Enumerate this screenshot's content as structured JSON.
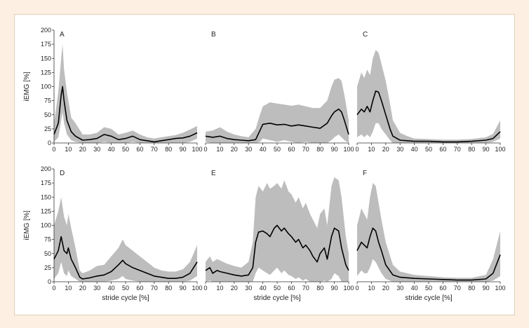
{
  "figure": {
    "ylabel": "iEMG [%]",
    "xlabel": "stride cycle [%]"
  },
  "colors": {
    "band": "#bdbdbd",
    "line": "#000000",
    "frame": "#e3cfb8",
    "background": "#fdf0e2"
  },
  "chart_data": [
    {
      "type": "area",
      "label": "A",
      "ylim": [
        0,
        200
      ],
      "xlim": [
        0,
        100
      ],
      "grid": false,
      "xticks": [
        "0",
        "10",
        "20",
        "30",
        "40",
        "50",
        "60",
        "70",
        "80",
        "90",
        "100"
      ],
      "yticks": [
        "0",
        "25",
        "50",
        "75",
        "100",
        "125",
        "150",
        "175",
        "200"
      ],
      "ylabel": "iEMG [%]",
      "xlabel": "",
      "x": [
        0,
        3,
        5,
        6,
        7,
        9,
        12,
        15,
        20,
        25,
        30,
        35,
        40,
        45,
        50,
        55,
        60,
        65,
        70,
        75,
        80,
        85,
        90,
        95,
        100
      ],
      "mean": [
        15,
        35,
        85,
        100,
        75,
        40,
        20,
        12,
        5,
        6,
        8,
        15,
        12,
        6,
        8,
        12,
        6,
        4,
        2,
        4,
        6,
        8,
        9,
        12,
        18
      ],
      "upper": [
        35,
        90,
        150,
        175,
        130,
        90,
        45,
        35,
        15,
        15,
        18,
        28,
        25,
        15,
        18,
        22,
        15,
        10,
        8,
        10,
        12,
        14,
        18,
        24,
        30
      ],
      "lower": [
        2,
        10,
        40,
        55,
        35,
        15,
        5,
        2,
        0,
        0,
        0,
        2,
        0,
        0,
        0,
        2,
        0,
        0,
        0,
        0,
        0,
        0,
        0,
        2,
        8
      ]
    },
    {
      "type": "area",
      "label": "B",
      "ylim": [
        0,
        200
      ],
      "xlim": [
        0,
        100
      ],
      "grid": false,
      "xticks": [
        "0",
        "10",
        "20",
        "30",
        "40",
        "50",
        "60",
        "70",
        "80",
        "90",
        "100"
      ],
      "yticks": [],
      "ylabel": "",
      "xlabel": "",
      "x": [
        0,
        5,
        10,
        15,
        20,
        25,
        30,
        35,
        38,
        40,
        45,
        50,
        55,
        60,
        65,
        70,
        75,
        80,
        85,
        88,
        90,
        93,
        95,
        97,
        100
      ],
      "mean": [
        12,
        10,
        12,
        8,
        6,
        5,
        4,
        6,
        22,
        33,
        35,
        32,
        33,
        30,
        32,
        30,
        28,
        26,
        35,
        48,
        55,
        60,
        55,
        40,
        15
      ],
      "upper": [
        20,
        22,
        28,
        20,
        15,
        12,
        10,
        25,
        50,
        65,
        72,
        70,
        68,
        66,
        68,
        65,
        62,
        62,
        75,
        100,
        112,
        115,
        110,
        85,
        40
      ],
      "lower": [
        2,
        0,
        0,
        0,
        0,
        0,
        0,
        0,
        2,
        8,
        5,
        2,
        5,
        2,
        0,
        2,
        0,
        0,
        0,
        5,
        10,
        15,
        10,
        5,
        0
      ]
    },
    {
      "type": "area",
      "label": "C",
      "ylim": [
        0,
        200
      ],
      "xlim": [
        0,
        100
      ],
      "grid": false,
      "xticks": [
        "0",
        "10",
        "20",
        "30",
        "40",
        "50",
        "60",
        "70",
        "80",
        "90",
        "100"
      ],
      "yticks": [],
      "ylabel": "",
      "xlabel": "",
      "x": [
        0,
        3,
        5,
        7,
        9,
        11,
        13,
        15,
        17,
        20,
        23,
        25,
        30,
        35,
        40,
        50,
        60,
        70,
        80,
        90,
        95,
        100
      ],
      "mean": [
        50,
        60,
        55,
        65,
        55,
        75,
        92,
        90,
        75,
        50,
        25,
        12,
        5,
        4,
        3,
        3,
        2,
        2,
        3,
        5,
        8,
        20
      ],
      "upper": [
        100,
        125,
        115,
        130,
        120,
        150,
        165,
        160,
        140,
        110,
        70,
        40,
        18,
        12,
        8,
        7,
        6,
        6,
        7,
        10,
        16,
        40
      ],
      "lower": [
        10,
        15,
        10,
        15,
        10,
        20,
        35,
        35,
        25,
        15,
        5,
        0,
        0,
        0,
        0,
        0,
        0,
        0,
        0,
        0,
        2,
        8
      ]
    },
    {
      "type": "area",
      "label": "D",
      "ylim": [
        0,
        200
      ],
      "xlim": [
        0,
        100
      ],
      "grid": false,
      "xticks": [
        "0",
        "10",
        "20",
        "30",
        "40",
        "50",
        "60",
        "70",
        "80",
        "90",
        "100"
      ],
      "yticks": [
        "0",
        "25",
        "50",
        "75",
        "100",
        "125",
        "150",
        "175",
        "200"
      ],
      "ylabel": "iEMG [%]",
      "xlabel": "stride cycle [%]",
      "x": [
        0,
        3,
        5,
        7,
        9,
        10,
        12,
        15,
        18,
        20,
        25,
        30,
        35,
        40,
        45,
        48,
        50,
        55,
        60,
        65,
        70,
        75,
        80,
        85,
        90,
        95,
        100
      ],
      "mean": [
        40,
        55,
        80,
        55,
        50,
        60,
        40,
        25,
        8,
        5,
        7,
        10,
        12,
        18,
        30,
        38,
        32,
        25,
        20,
        15,
        10,
        8,
        6,
        6,
        8,
        15,
        35
      ],
      "upper": [
        100,
        125,
        150,
        115,
        100,
        120,
        95,
        60,
        20,
        15,
        20,
        28,
        30,
        45,
        60,
        75,
        65,
        55,
        45,
        35,
        25,
        20,
        18,
        18,
        22,
        35,
        65
      ],
      "lower": [
        5,
        15,
        35,
        15,
        10,
        20,
        10,
        5,
        0,
        0,
        0,
        0,
        0,
        2,
        5,
        10,
        5,
        2,
        0,
        0,
        0,
        0,
        0,
        0,
        0,
        2,
        10
      ]
    },
    {
      "type": "area",
      "label": "E",
      "ylim": [
        0,
        200
      ],
      "xlim": [
        0,
        100
      ],
      "grid": false,
      "xticks": [
        "0",
        "10",
        "20",
        "30",
        "40",
        "50",
        "60",
        "70",
        "80",
        "90",
        "100"
      ],
      "yticks": [],
      "ylabel": "",
      "xlabel": "stride cycle [%]",
      "x": [
        0,
        3,
        5,
        8,
        10,
        15,
        20,
        25,
        30,
        33,
        35,
        37,
        40,
        43,
        45,
        48,
        50,
        53,
        55,
        58,
        60,
        63,
        65,
        68,
        70,
        73,
        75,
        78,
        80,
        83,
        85,
        88,
        90,
        93,
        95,
        98,
        100
      ],
      "mean": [
        20,
        25,
        15,
        20,
        18,
        15,
        12,
        10,
        12,
        25,
        70,
        88,
        90,
        85,
        80,
        95,
        100,
        90,
        95,
        85,
        80,
        70,
        75,
        60,
        65,
        55,
        45,
        35,
        50,
        60,
        40,
        80,
        95,
        90,
        60,
        30,
        20
      ],
      "upper": [
        35,
        45,
        35,
        40,
        38,
        32,
        28,
        25,
        35,
        70,
        150,
        170,
        160,
        175,
        165,
        170,
        175,
        165,
        180,
        160,
        155,
        140,
        150,
        130,
        140,
        120,
        110,
        95,
        120,
        130,
        100,
        170,
        185,
        180,
        150,
        80,
        50
      ],
      "lower": [
        0,
        2,
        0,
        0,
        0,
        0,
        0,
        0,
        0,
        0,
        15,
        25,
        20,
        15,
        12,
        20,
        25,
        15,
        20,
        12,
        10,
        5,
        8,
        2,
        5,
        0,
        0,
        0,
        0,
        2,
        0,
        5,
        15,
        10,
        0,
        0,
        0
      ]
    },
    {
      "type": "area",
      "label": "F",
      "ylim": [
        0,
        200
      ],
      "xlim": [
        0,
        100
      ],
      "grid": false,
      "xticks": [
        "0",
        "10",
        "20",
        "30",
        "40",
        "50",
        "60",
        "70",
        "80",
        "90",
        "100"
      ],
      "yticks": [],
      "ylabel": "",
      "xlabel": "stride cycle [%]",
      "x": [
        0,
        3,
        5,
        7,
        9,
        11,
        13,
        15,
        17,
        20,
        25,
        30,
        40,
        50,
        60,
        70,
        80,
        90,
        95,
        100
      ],
      "mean": [
        55,
        70,
        65,
        60,
        80,
        95,
        90,
        70,
        55,
        30,
        12,
        8,
        6,
        5,
        4,
        3,
        3,
        5,
        15,
        48
      ],
      "upper": [
        100,
        130,
        120,
        110,
        150,
        175,
        170,
        140,
        110,
        70,
        30,
        18,
        12,
        10,
        8,
        7,
        7,
        12,
        40,
        90
      ],
      "lower": [
        10,
        20,
        15,
        15,
        25,
        40,
        35,
        25,
        15,
        5,
        0,
        0,
        0,
        0,
        0,
        0,
        0,
        0,
        2,
        10
      ]
    }
  ]
}
